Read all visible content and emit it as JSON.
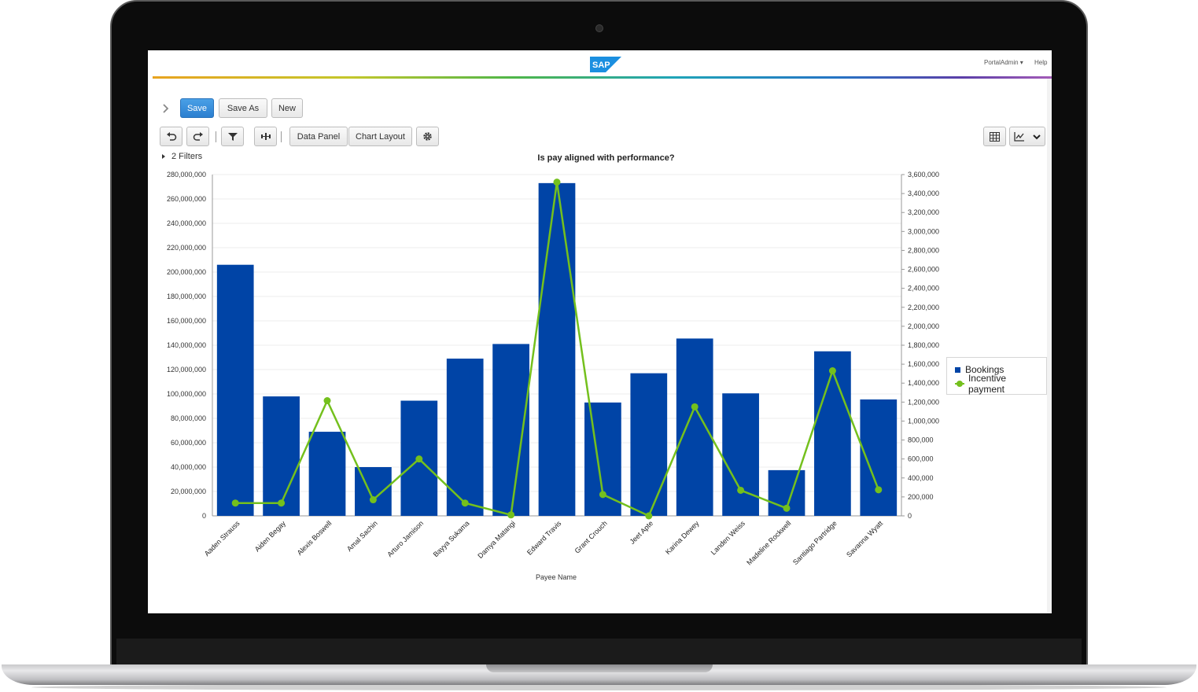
{
  "app": {
    "brand": "SAP",
    "user_menu": "PortalAdmin ▾",
    "help": "Help"
  },
  "toolbar": {
    "save_label": "Save",
    "save_as_label": "Save As",
    "new_label": "New",
    "data_panel_label": "Data Panel",
    "chart_layout_label": "Chart Layout"
  },
  "filters": {
    "label": "2  Filters"
  },
  "colors": {
    "bookings": "#0044a6",
    "incentive": "#74c01d",
    "accent": "#2b7fd0"
  },
  "chart_data": {
    "type": "bar",
    "title": "Is pay aligned with performance?",
    "xlabel": "Payee Name",
    "ylabel": "",
    "ylim": [
      0,
      280000000
    ],
    "y2lim": [
      0,
      3600000
    ],
    "grid": true,
    "legend_position": "right",
    "categories": [
      "Aaden Strauss",
      "Aiden Begay",
      "Alexis Boswell",
      "Amal Sachin",
      "Arturo Jamison",
      "Bayya Sukama",
      "Damya Matangi",
      "Edward Travis",
      "Grant Crouch",
      "Jeet Apte",
      "Karina Dewey",
      "Landen Weiss",
      "Madeline Rockwell",
      "Santiago Partridge",
      "Savanna Wyatt"
    ],
    "series": [
      {
        "name": "Bookings",
        "type": "bar",
        "axis": "left",
        "values": [
          206000000,
          98000000,
          69000000,
          40000000,
          94500000,
          129000000,
          141000000,
          273000000,
          93000000,
          117000000,
          145500000,
          100500000,
          37500000,
          135000000,
          95500000
        ]
      },
      {
        "name": "Incentive payment",
        "type": "line",
        "axis": "right",
        "values": [
          135000,
          135000,
          1215000,
          170000,
          600000,
          135000,
          10000,
          3520000,
          225000,
          0,
          1150000,
          270000,
          80000,
          1530000,
          275000
        ]
      }
    ],
    "y_ticks": [
      "0",
      "20,000,000",
      "40,000,000",
      "60,000,000",
      "80,000,000",
      "100,000,000",
      "120,000,000",
      "140,000,000",
      "160,000,000",
      "180,000,000",
      "200,000,000",
      "220,000,000",
      "240,000,000",
      "260,000,000",
      "280,000,000"
    ],
    "y2_ticks": [
      "0",
      "200,000",
      "400,000",
      "600,000",
      "800,000",
      "1,000,000",
      "1,200,000",
      "1,400,000",
      "1,600,000",
      "1,800,000",
      "2,000,000",
      "2,200,000",
      "2,400,000",
      "2,600,000",
      "2,800,000",
      "3,000,000",
      "3,200,000",
      "3,400,000",
      "3,600,000"
    ]
  }
}
